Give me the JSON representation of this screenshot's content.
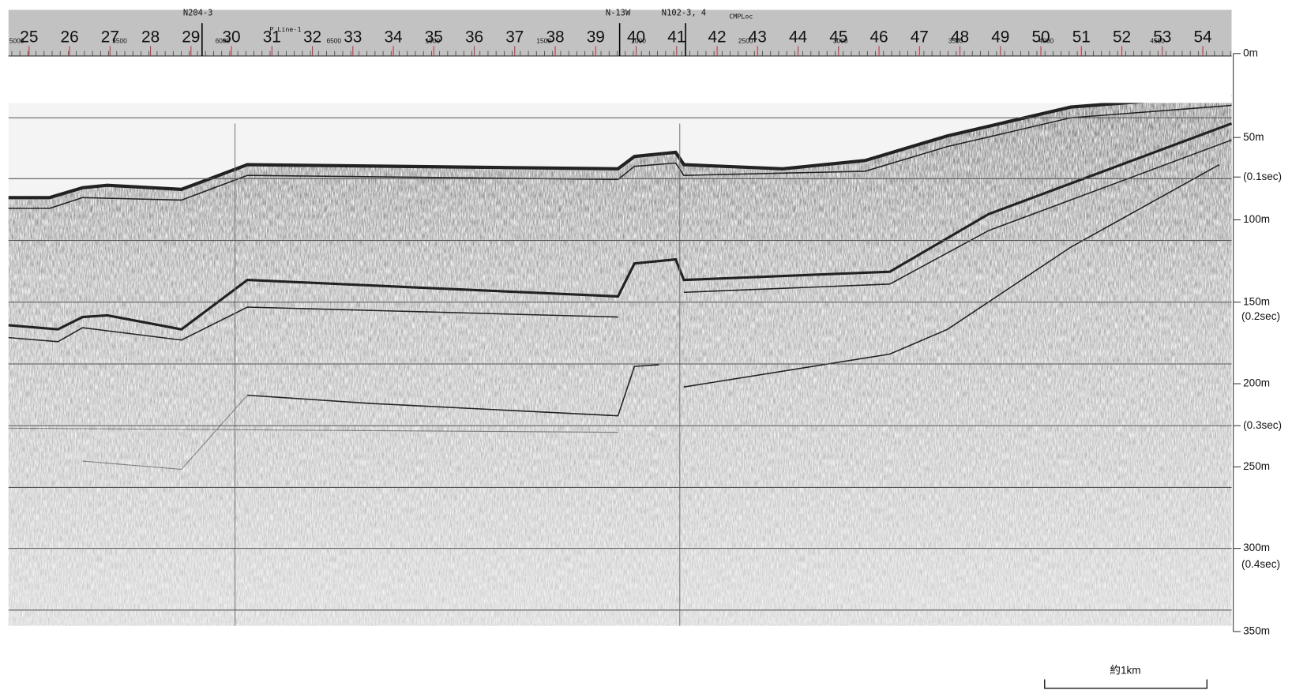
{
  "line_names": [
    "N204-3",
    "P Line-1",
    "N-13W",
    "N102-3, 4",
    "CMPLoc"
  ],
  "stations": [
    "25",
    "26",
    "27",
    "28",
    "29",
    "30",
    "31",
    "32",
    "33",
    "34",
    "35",
    "36",
    "37",
    "38",
    "39",
    "40",
    "41",
    "42",
    "43",
    "44",
    "45",
    "46",
    "47",
    "48",
    "49",
    "50",
    "51",
    "52",
    "53",
    "54"
  ],
  "cmp_labels": [
    "5000",
    "5500",
    "6000",
    "6500",
    "1000",
    "1500",
    "2000",
    "2500",
    "3000",
    "3500",
    "4000",
    "4500"
  ],
  "depth_labels": [
    "0m",
    "50m",
    "(0.1sec)",
    "100m",
    "150m",
    "(0.2sec)",
    "200m",
    "(0.3sec)",
    "250m",
    "300m",
    "(0.4sec)",
    "350m"
  ],
  "scale_bar": "約1km"
}
